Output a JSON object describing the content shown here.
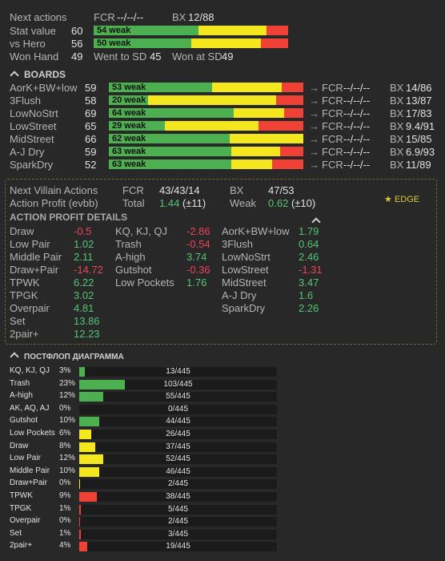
{
  "header": {
    "next_actions": "Next actions",
    "fcr_label": "FCR",
    "fcr_value": "--/--/--",
    "bx_label": "BX",
    "bx_value": "12/88",
    "stat_label": "Stat value",
    "stat_value": "60",
    "stat_bar": {
      "label": "54 weak",
      "green": 0.54,
      "yellow": 0.35,
      "red": 0.11
    },
    "hero_label": "vs Hero",
    "hero_value": "56",
    "hero_bar": {
      "label": "50 weak",
      "green": 0.5,
      "yellow": 0.36,
      "red": 0.14
    },
    "won_hand_label": "Won Hand",
    "won_hand_value": "49",
    "went_sd_label": "Went to SD",
    "went_sd_value": "45",
    "won_sd_label": "Won at SD",
    "won_sd_value": "49"
  },
  "boards": {
    "title": "BOARDS",
    "arrow": "→",
    "fcr_label": "FCR",
    "bx_label": "BX",
    "rows": [
      {
        "name": "AorK+BW+low",
        "value": "59",
        "bar_label": "53 weak",
        "green": 0.53,
        "yellow": 0.36,
        "red": 0.11,
        "fcr": "--/--/--",
        "bx": "14/86"
      },
      {
        "name": "3Flush",
        "value": "58",
        "bar_label": "20 weak",
        "green": 0.2,
        "yellow": 0.66,
        "red": 0.14,
        "fcr": "--/--/--",
        "bx": "13/87"
      },
      {
        "name": "LowNoStrt",
        "value": "69",
        "bar_label": "64 weak",
        "green": 0.64,
        "yellow": 0.26,
        "red": 0.1,
        "fcr": "--/--/--",
        "bx": "17/83"
      },
      {
        "name": "LowStreet",
        "value": "65",
        "bar_label": "29 weak",
        "green": 0.29,
        "yellow": 0.48,
        "red": 0.23,
        "fcr": "--/--/--",
        "bx": "9.4/91"
      },
      {
        "name": "MidStreet",
        "value": "66",
        "bar_label": "62 weak",
        "green": 0.62,
        "yellow": 0.38,
        "red": 0.0,
        "fcr": "--/--/--",
        "bx": "15/85"
      },
      {
        "name": "A-J Dry",
        "value": "59",
        "bar_label": "63 weak",
        "green": 0.63,
        "yellow": 0.25,
        "red": 0.12,
        "fcr": "--/--/--",
        "bx": "6.9/93"
      },
      {
        "name": "SparkDry",
        "value": "52",
        "bar_label": "63 weak",
        "green": 0.63,
        "yellow": 0.21,
        "red": 0.16,
        "fcr": "--/--/--",
        "bx": "11/89"
      }
    ]
  },
  "edge": {
    "tag": "EDGE",
    "next_villain": "Next Villain Actions",
    "fcr_label": "FCR",
    "fcr_value": "43/43/14",
    "bx_label": "BX",
    "bx_value": "47/53",
    "action_profit_label": "Action Profit (evbb)",
    "total_label": "Total",
    "total_value": "1.44",
    "total_err": "(±11)",
    "weak_label": "Weak",
    "weak_value": "0.62",
    "weak_err": "(±10)",
    "details_title": "ACTION PROFIT DETAILS",
    "col1": [
      {
        "name": "Draw",
        "value": "-0.5",
        "sign": "neg"
      },
      {
        "name": "Low Pair",
        "value": "1.02",
        "sign": "pos"
      },
      {
        "name": "Middle Pair",
        "value": "2.11",
        "sign": "pos"
      },
      {
        "name": "Draw+Pair",
        "value": "-14.72",
        "sign": "neg"
      },
      {
        "name": "TPWK",
        "value": "6.22",
        "sign": "pos"
      },
      {
        "name": "TPGK",
        "value": "3.02",
        "sign": "pos"
      },
      {
        "name": "Overpair",
        "value": "4.81",
        "sign": "pos"
      },
      {
        "name": "Set",
        "value": "13.86",
        "sign": "pos"
      },
      {
        "name": "2pair+",
        "value": "12.23",
        "sign": "pos"
      }
    ],
    "col2": [
      {
        "name": "KQ, KJ, QJ",
        "value": "-2.86",
        "sign": "neg"
      },
      {
        "name": "Trash",
        "value": "-0.54",
        "sign": "neg"
      },
      {
        "name": "A-high",
        "value": "3.74",
        "sign": "pos"
      },
      {
        "name": "Gutshot",
        "value": "-0.36",
        "sign": "neg"
      },
      {
        "name": "Low Pockets",
        "value": "1.76",
        "sign": "pos"
      }
    ],
    "col3": [
      {
        "name": "AorK+BW+low",
        "value": "1.79",
        "sign": "pos"
      },
      {
        "name": "3Flush",
        "value": "0.64",
        "sign": "pos"
      },
      {
        "name": "LowNoStrt",
        "value": "2.46",
        "sign": "pos"
      },
      {
        "name": "LowStreet",
        "value": "-1.31",
        "sign": "neg"
      },
      {
        "name": "MidStreet",
        "value": "3.47",
        "sign": "pos"
      },
      {
        "name": "A-J Dry",
        "value": "1.6",
        "sign": "pos"
      },
      {
        "name": "SparkDry",
        "value": "2.26",
        "sign": "pos"
      }
    ]
  },
  "postflop": {
    "title": "ПОСТФЛОП ДИАГРАММА",
    "colors": {
      "green": "#4caf50",
      "yellow": "#f5e71e",
      "red": "#ef4136"
    },
    "rows": [
      {
        "name": "KQ, KJ, QJ",
        "pct": "3%",
        "fill": 0.03,
        "color": "green",
        "count": "13/445"
      },
      {
        "name": "Trash",
        "pct": "23%",
        "fill": 0.23,
        "color": "green",
        "count": "103/445"
      },
      {
        "name": "A-high",
        "pct": "12%",
        "fill": 0.12,
        "color": "green",
        "count": "55/445"
      },
      {
        "name": "AK, AQ, AJ",
        "pct": "0%",
        "fill": 0.0,
        "color": "green",
        "count": "0/445"
      },
      {
        "name": "Gutshot",
        "pct": "10%",
        "fill": 0.1,
        "color": "green",
        "count": "44/445"
      },
      {
        "name": "Low Pockets",
        "pct": "6%",
        "fill": 0.06,
        "color": "yellow",
        "count": "26/445"
      },
      {
        "name": "Draw",
        "pct": "8%",
        "fill": 0.08,
        "color": "yellow",
        "count": "37/445"
      },
      {
        "name": "Low Pair",
        "pct": "12%",
        "fill": 0.12,
        "color": "yellow",
        "count": "52/445"
      },
      {
        "name": "Middle Pair",
        "pct": "10%",
        "fill": 0.1,
        "color": "yellow",
        "count": "46/445"
      },
      {
        "name": "Draw+Pair",
        "pct": "0%",
        "fill": 0.005,
        "color": "yellow",
        "count": "2/445"
      },
      {
        "name": "TPWK",
        "pct": "9%",
        "fill": 0.09,
        "color": "red",
        "count": "38/445"
      },
      {
        "name": "TPGK",
        "pct": "1%",
        "fill": 0.01,
        "color": "red",
        "count": "5/445"
      },
      {
        "name": "Overpair",
        "pct": "0%",
        "fill": 0.005,
        "color": "red",
        "count": "2/445"
      },
      {
        "name": "Set",
        "pct": "1%",
        "fill": 0.01,
        "color": "red",
        "count": "3/445"
      },
      {
        "name": "2pair+",
        "pct": "4%",
        "fill": 0.04,
        "color": "red",
        "count": "19/445"
      }
    ]
  }
}
